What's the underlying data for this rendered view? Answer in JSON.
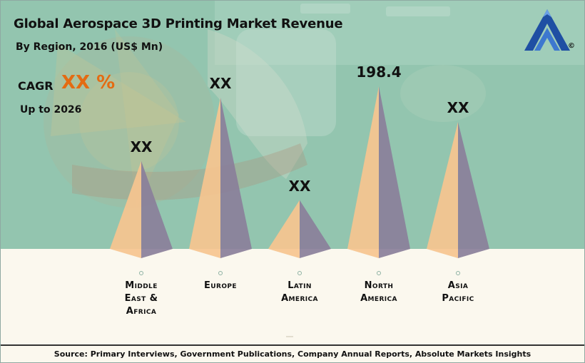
{
  "header": {
    "title": "Global Aerospace 3D Printing Market Revenue",
    "subtitle": "By Region, 2016 (US$ Mn)"
  },
  "cagr": {
    "label": "CAGR",
    "value": "XX %",
    "period": "Up to 2026"
  },
  "logo": {
    "icon": "absolute-markets-insights-logo-icon",
    "copyright": "©"
  },
  "colors": {
    "accent": "#e46b12",
    "pyramid_light": "#f6c48f",
    "pyramid_dark": "#8a7f9a",
    "background_green": "#98c8b2",
    "background_cream": "#fbf8ee"
  },
  "chart_data": {
    "type": "bar",
    "mark": "pyramid",
    "title": "Global Aerospace 3D Printing Market Revenue",
    "subtitle": "By Region, 2016 (US$ Mn)",
    "categories": [
      "Middle East & Africa",
      "Europe",
      "Latin America",
      "North America",
      "Asia Pacific"
    ],
    "category_lines": [
      [
        "Middle",
        "East &",
        "Africa"
      ],
      [
        "Europe"
      ],
      [
        "Latin",
        "America"
      ],
      [
        "North",
        "America"
      ],
      [
        "Asia",
        "Pacific"
      ]
    ],
    "value_labels": [
      "XX",
      "XX",
      "XX",
      "198.4",
      "XX"
    ],
    "values": [
      null,
      null,
      null,
      198.4,
      null
    ],
    "relative_heights": [
      0.54,
      0.93,
      0.3,
      1.0,
      0.78
    ],
    "legend": "none",
    "grid": false
  },
  "footer": {
    "source": "Source: Primary Interviews, Government Publications, Company Annual Reports, Absolute Markets Insights"
  }
}
